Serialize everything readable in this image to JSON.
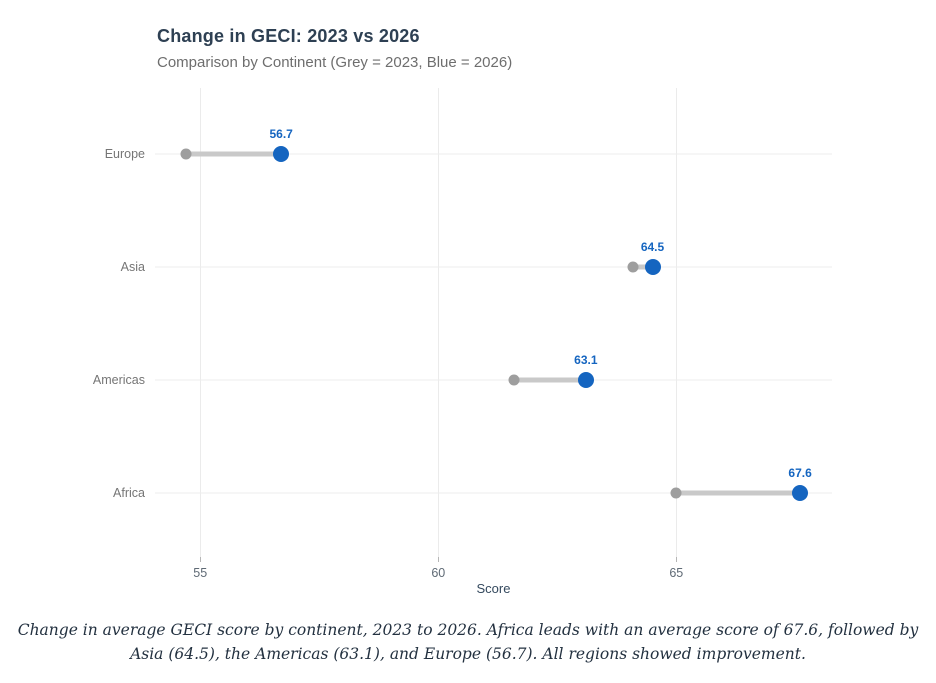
{
  "header": {
    "title": "Change in GECI: 2023 vs 2026",
    "subtitle": "Comparison by Continent (Grey = 2023, Blue = 2026)"
  },
  "chart_data": {
    "type": "scatter",
    "variant": "dumbbell",
    "title": "Change in GECI: 2023 vs 2026",
    "subtitle": "Comparison by Continent (Grey = 2023, Blue = 2026)",
    "categories": [
      "Europe",
      "Asia",
      "Americas",
      "Africa"
    ],
    "series": [
      {
        "name": "2023",
        "color": "#9e9e9e",
        "values": [
          54.7,
          64.1,
          61.6,
          65.0
        ]
      },
      {
        "name": "2026",
        "color": "#1565c0",
        "values": [
          56.7,
          64.5,
          63.1,
          67.6
        ]
      }
    ],
    "value_labels": [
      "56.7",
      "64.5",
      "63.1",
      "67.6"
    ],
    "xlabel": "Score",
    "ylabel": "",
    "x_ticks": [
      "55",
      "60",
      "65"
    ],
    "x_tick_values": [
      55,
      60,
      65
    ],
    "xlim": [
      54.05,
      68.27
    ],
    "row_fractions": [
      0.141,
      0.382,
      0.623,
      0.864
    ],
    "grid": true,
    "legend_position": "none",
    "connector_color": "#c9c9c9"
  },
  "colors": {
    "accent_blue": "#1565c0",
    "grey_dot": "#9e9e9e",
    "connector": "#c9c9c9",
    "gridline": "#ebebeb",
    "title_text": "#2e4053",
    "subtitle_text": "#6e6e6e",
    "axis_text": "#5f6a75"
  },
  "caption": "Change in average GECI score by continent, 2023 to 2026. Africa leads with an average score of 67.6, followed by Asia (64.5), the Americas (63.1), and Europe (56.7). All regions showed improvement."
}
